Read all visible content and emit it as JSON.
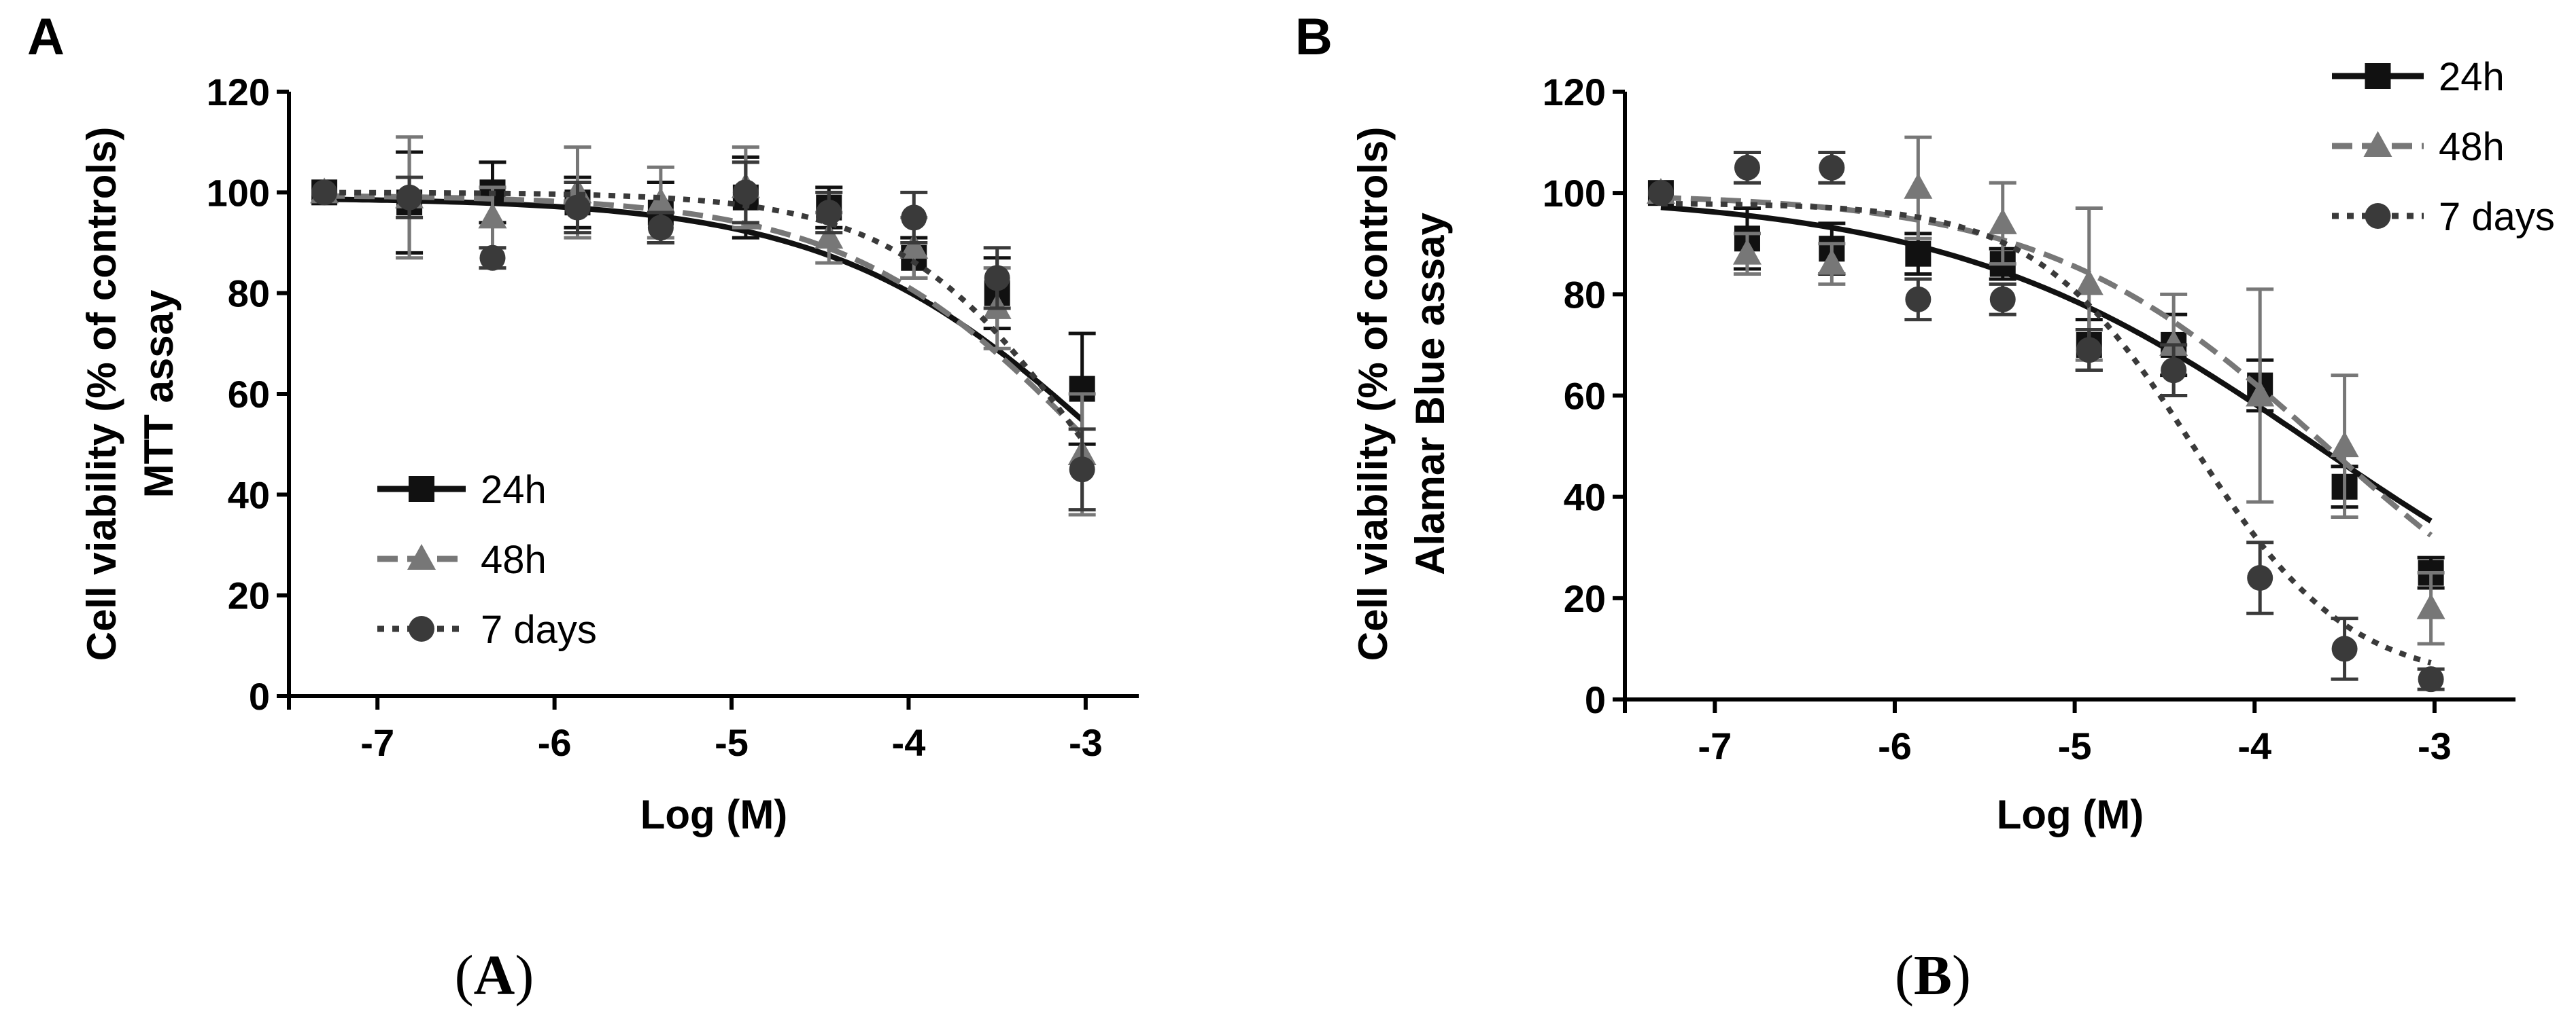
{
  "captions": {
    "a": "A",
    "b": "B"
  },
  "chart_data": [
    {
      "type": "line",
      "panel_letter": "A",
      "title": "",
      "xlabel": "Log (M)",
      "ylabel_line1": "Cell viability (% of controls)",
      "ylabel_line2": "MTT assay",
      "xlim": [
        -7.5,
        -2.7
      ],
      "ylim": [
        0,
        120
      ],
      "x_ticks": [
        -7,
        -6,
        -5,
        -4,
        -3
      ],
      "y_ticks": [
        0,
        20,
        40,
        60,
        80,
        100,
        120
      ],
      "grid": false,
      "legend_position": "bottom-left",
      "series": [
        {
          "name": "24h",
          "marker": "square",
          "line": "solid",
          "color": "#111111",
          "x": [
            -7.3,
            -6.82,
            -6.35,
            -5.87,
            -5.4,
            -4.92,
            -4.45,
            -3.97,
            -3.5,
            -3.02
          ],
          "y": [
            100,
            98,
            100,
            98,
            96,
            99,
            97,
            87,
            80,
            61
          ],
          "err": [
            0,
            10,
            6,
            5,
            6,
            8,
            4,
            4,
            7,
            11
          ],
          "fit": {
            "top": 99,
            "bottom": 0,
            "log_ic50": -2.85,
            "hill": 0.55
          }
        },
        {
          "name": "48h",
          "marker": "triangle",
          "line": "dashed",
          "color": "#777777",
          "x": [
            -7.3,
            -6.82,
            -6.35,
            -5.87,
            -5.4,
            -4.92,
            -4.45,
            -3.97,
            -3.5,
            -3.02
          ],
          "y": [
            100,
            99,
            95,
            100,
            98,
            101,
            91,
            89,
            77,
            48
          ],
          "err": [
            0,
            12,
            6,
            9,
            7,
            8,
            5,
            6,
            8,
            12
          ],
          "fit": {
            "top": 99.5,
            "bottom": 0,
            "log_ic50": -2.96,
            "hill": 0.62
          }
        },
        {
          "name": "7 days",
          "marker": "circle",
          "line": "dotted",
          "color": "#3a3a3a",
          "x": [
            -7.3,
            -6.82,
            -6.35,
            -5.87,
            -5.4,
            -4.92,
            -4.45,
            -3.97,
            -3.5,
            -3.02
          ],
          "y": [
            100,
            99,
            87,
            97,
            93,
            100,
            96,
            95,
            83,
            45
          ],
          "err": [
            0,
            4,
            2,
            5,
            3,
            6,
            4,
            5,
            6,
            8
          ],
          "fit": {
            "top": 100,
            "bottom": 0,
            "log_ic50": -3.0,
            "hill": 0.82
          }
        }
      ]
    },
    {
      "type": "line",
      "panel_letter": "B",
      "title": "",
      "xlabel": "Log (M)",
      "ylabel_line1": "Cell viability (% of controls)",
      "ylabel_line2": "Alamar Blue assay",
      "xlim": [
        -7.5,
        -2.55
      ],
      "ylim": [
        0,
        120
      ],
      "x_ticks": [
        -7,
        -6,
        -5,
        -4,
        -3
      ],
      "y_ticks": [
        0,
        20,
        40,
        60,
        80,
        100,
        120
      ],
      "grid": false,
      "legend_position": "top-right",
      "series": [
        {
          "name": "24h",
          "marker": "square",
          "line": "solid",
          "color": "#111111",
          "x": [
            -7.3,
            -6.82,
            -6.35,
            -5.87,
            -5.4,
            -4.92,
            -4.45,
            -3.97,
            -3.5,
            -3.02
          ],
          "y": [
            100,
            91,
            89,
            88,
            86,
            70,
            70,
            62,
            42,
            25
          ],
          "err": [
            0,
            6,
            5,
            4,
            3,
            5,
            6,
            5,
            4,
            3
          ],
          "fit": {
            "top": 100,
            "bottom": 0,
            "log_ic50": -3.65,
            "hill": 0.42
          }
        },
        {
          "name": "48h",
          "marker": "triangle",
          "line": "dashed",
          "color": "#777777",
          "x": [
            -7.3,
            -6.82,
            -6.35,
            -5.87,
            -5.4,
            -4.92,
            -4.45,
            -3.97,
            -3.5,
            -3.02
          ],
          "y": [
            100,
            88,
            86,
            101,
            94,
            82,
            70,
            60,
            50,
            18
          ],
          "err": [
            0,
            4,
            4,
            10,
            8,
            15,
            10,
            21,
            14,
            7
          ],
          "fit": {
            "top": 100,
            "bottom": 0,
            "log_ic50": -3.6,
            "hill": 0.55
          }
        },
        {
          "name": "7 days",
          "marker": "circle",
          "line": "dotted",
          "color": "#3a3a3a",
          "x": [
            -7.3,
            -6.82,
            -6.35,
            -5.87,
            -5.4,
            -4.92,
            -4.45,
            -3.97,
            -3.5,
            -3.02
          ],
          "y": [
            100,
            105,
            105,
            79,
            79,
            69,
            65,
            24,
            10,
            4
          ],
          "err": [
            0,
            3,
            3,
            4,
            3,
            4,
            5,
            7,
            6,
            2
          ],
          "fit": {
            "top": 98,
            "bottom": 3,
            "log_ic50": -4.35,
            "hill": 1.0
          }
        }
      ]
    }
  ]
}
